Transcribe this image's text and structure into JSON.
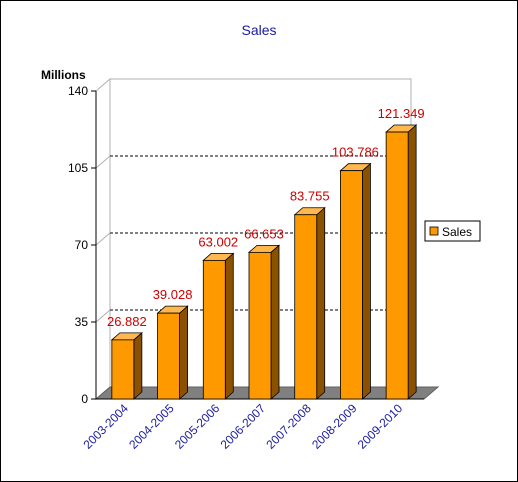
{
  "chart_data": {
    "type": "bar",
    "title": "Sales",
    "ylabel": "Millions",
    "xlabel": "",
    "categories": [
      "2003-2004",
      "2004-2005",
      "2005-2006",
      "2006-2007",
      "2007-2008",
      "2008-2009",
      "2009-2010"
    ],
    "series": [
      {
        "name": "Sales",
        "values": [
          26.882,
          39.028,
          63.002,
          66.653,
          83.755,
          103.786,
          121.349
        ]
      }
    ],
    "value_labels": [
      "26.882",
      "39.028",
      "63.002",
      "66.653",
      "83.755",
      "103.786",
      "121.349"
    ],
    "yticks": [
      "0",
      "35",
      "70",
      "105",
      "140"
    ],
    "ylim": [
      0,
      140
    ],
    "grid": "dashed horizontal",
    "legend_position": "right",
    "three_d": true,
    "colors": {
      "title": "#1a1aa0",
      "category_labels": "#1a1aa0",
      "value_labels": "#cc0000",
      "bar_front": "#ff9900",
      "bar_top": "#ffb84d",
      "bar_side": "#8a5200",
      "floor": "#808080",
      "axis": "#000000"
    }
  }
}
